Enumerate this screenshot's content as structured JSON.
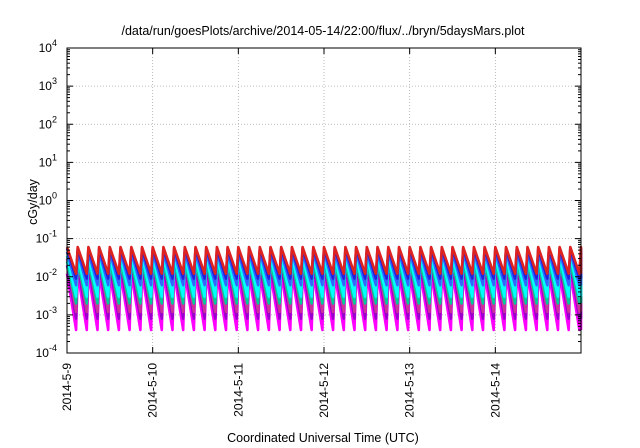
{
  "chart_data": {
    "type": "line",
    "title": "/data/run/goesPlots/archive/2014-05-14/22:00/flux/../bryn/5daysMars.plot",
    "xlabel": "Coordinated Universal Time (UTC)",
    "ylabel": "cGy/day",
    "yscale": "log",
    "ylim": [
      0.0001,
      10000
    ],
    "y_ticks": [
      {
        "value": 0.0001,
        "base": "10",
        "exp": "-4"
      },
      {
        "value": 0.001,
        "base": "10",
        "exp": "-3"
      },
      {
        "value": 0.01,
        "base": "10",
        "exp": "-2"
      },
      {
        "value": 0.1,
        "base": "10",
        "exp": "-1"
      },
      {
        "value": 1,
        "base": "10",
        "exp": "0"
      },
      {
        "value": 10,
        "base": "10",
        "exp": "1"
      },
      {
        "value": 100,
        "base": "10",
        "exp": "2"
      },
      {
        "value": 1000,
        "base": "10",
        "exp": "3"
      },
      {
        "value": 10000,
        "base": "10",
        "exp": "4"
      }
    ],
    "xlim": [
      "2014-05-09",
      "2014-05-15"
    ],
    "x_ticks": [
      "2014-5-9",
      "2014-5-10",
      "2014-5-11",
      "2014-5-12",
      "2014-5-13",
      "2014-5-14"
    ],
    "grid": true,
    "sawtooth_cycles_per_day": 8,
    "series": [
      {
        "color": "#ff00ff",
        "peak": 0.012,
        "trough": 0.0004
      },
      {
        "color": "#9900cc",
        "peak": 0.02,
        "trough": 0.0008
      },
      {
        "color": "#cc3399",
        "peak": 0.03,
        "trough": 0.0012
      },
      {
        "color": "#00cc99",
        "peak": 0.025,
        "trough": 0.002
      },
      {
        "color": "#00ffff",
        "peak": 0.035,
        "trough": 0.003
      },
      {
        "color": "#3366ff",
        "peak": 0.045,
        "trough": 0.006
      },
      {
        "color": "#2222dd",
        "peak": 0.055,
        "trough": 0.009
      },
      {
        "color": "#dd2222",
        "peak": 0.06,
        "trough": 0.012
      }
    ]
  }
}
